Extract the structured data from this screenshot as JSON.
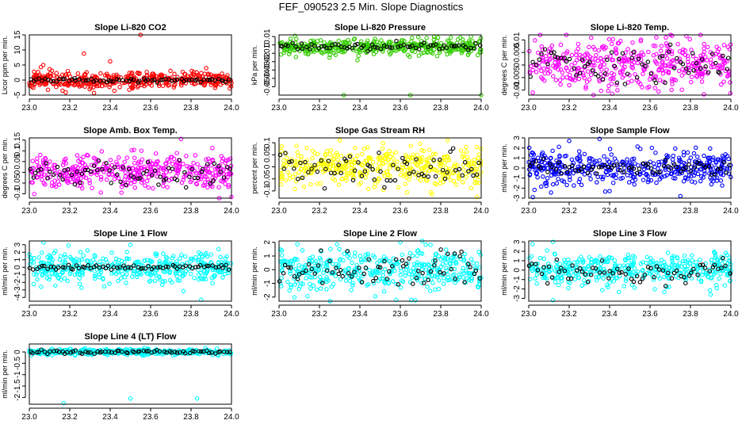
{
  "figure": {
    "title": "FEF_090523  2.5 Min. Slope Diagnostics"
  },
  "chart_data": [
    {
      "type": "scatter",
      "id": "co2",
      "title": "Slope Li-820 CO2",
      "ylabel": "Licor ppm per min.",
      "xlabel": "",
      "xlim": [
        23.0,
        24.0
      ],
      "ylim": [
        -5,
        15
      ],
      "yticks": [
        -5,
        0,
        5,
        10,
        15
      ],
      "xticks": [
        23.0,
        23.2,
        23.4,
        23.6,
        23.8,
        24.0
      ],
      "color": "#ff0000",
      "mean": 0,
      "spread": 1.4,
      "black_spread": 0.35,
      "seed": 11,
      "outliers": [
        [
          23.55,
          15.8
        ],
        [
          23.27,
          8.8
        ],
        [
          23.1,
          3.6
        ],
        [
          23.4,
          6.2
        ],
        [
          23.18,
          -4.1
        ],
        [
          23.32,
          -4.3
        ]
      ]
    },
    {
      "type": "scatter",
      "id": "pressure",
      "title": "Slope Li-820 Pressure",
      "ylabel": "kPa per min.",
      "xlabel": "",
      "xlim": [
        23.0,
        24.0
      ],
      "ylim": [
        -0.06,
        0.012
      ],
      "yticks": [
        -0.05,
        -0.04,
        -0.03,
        -0.02,
        -0.01,
        0.0,
        0.01
      ],
      "xticks": [
        23.0,
        23.2,
        23.4,
        23.6,
        23.8,
        24.0
      ],
      "color": "#33cc00",
      "mean": -0.002,
      "spread": 0.0045,
      "black_spread": 0.002,
      "seed": 23,
      "outliers": [
        [
          23.32,
          -0.06
        ],
        [
          23.65,
          -0.06
        ],
        [
          24.0,
          -0.06
        ],
        [
          23.95,
          0.01
        ]
      ]
    },
    {
      "type": "scatter",
      "id": "temp",
      "title": "Slope Li-820 Temp.",
      "ylabel": "degrees C per min.",
      "xlabel": "",
      "xlim": [
        23.0,
        24.0
      ],
      "ylim": [
        -0.012,
        0.012
      ],
      "yticks": [
        -0.01,
        -0.005,
        0.0,
        0.005,
        0.01
      ],
      "xticks": [
        23.0,
        23.2,
        23.4,
        23.6,
        23.8,
        24.0
      ],
      "color": "#ff00ff",
      "mean": 0.0,
      "spread": 0.0048,
      "black_spread": 0.0035,
      "seed": 37,
      "outliers": [
        [
          23.78,
          0.0115
        ],
        [
          23.02,
          -0.011
        ]
      ]
    },
    {
      "type": "scatter",
      "id": "ambtemp",
      "title": "Slope Amb. Box Temp.",
      "ylabel": "degrees C per min.",
      "xlabel": "",
      "xlim": [
        23.0,
        24.0
      ],
      "ylim": [
        -0.12,
        0.16
      ],
      "yticks": [
        -0.1,
        -0.05,
        0.0,
        0.05,
        0.1,
        0.15
      ],
      "xticks": [
        23.0,
        23.2,
        23.4,
        23.6,
        23.8,
        24.0
      ],
      "color": "#ff00ff",
      "mean": 0.0,
      "spread": 0.04,
      "black_spread": 0.03,
      "seed": 41,
      "outliers": [
        [
          23.75,
          0.155
        ],
        [
          24.0,
          -0.115
        ]
      ]
    },
    {
      "type": "scatter",
      "id": "rh",
      "title": "Slope Gas Stream RH",
      "ylabel": "percent per min.",
      "xlabel": "",
      "xlim": [
        23.0,
        24.0
      ],
      "ylim": [
        -0.13,
        0.12
      ],
      "yticks": [
        -0.1,
        -0.05,
        0.0,
        0.05,
        0.1
      ],
      "xticks": [
        23.0,
        23.2,
        23.4,
        23.6,
        23.8,
        24.0
      ],
      "color": "#ffff00",
      "mean": 0.0,
      "spread": 0.04,
      "black_spread": 0.035,
      "seed": 53,
      "outliers": [
        [
          23.98,
          -0.125
        ],
        [
          23.3,
          0.11
        ]
      ]
    },
    {
      "type": "scatter",
      "id": "sampleflow",
      "title": "Slope Sample Flow",
      "ylabel": "ml/min per min.",
      "xlabel": "",
      "xlim": [
        23.0,
        24.0
      ],
      "ylim": [
        -3,
        3
      ],
      "yticks": [
        -3,
        -2,
        -1,
        0,
        1,
        2,
        3
      ],
      "xticks": [
        23.0,
        23.2,
        23.4,
        23.6,
        23.8,
        24.0
      ],
      "color": "#0000ff",
      "mean": 0.0,
      "spread": 0.75,
      "black_spread": 0.35,
      "seed": 67,
      "outliers": [
        [
          23.35,
          2.9
        ],
        [
          23.2,
          2.7
        ],
        [
          23.02,
          -2.9
        ],
        [
          23.75,
          -2.8
        ],
        [
          23.4,
          -2.3
        ]
      ]
    },
    {
      "type": "scatter",
      "id": "line1",
      "title": "Slope Line 1 Flow",
      "ylabel": "ml/min per min.",
      "xlabel": "",
      "xlim": [
        23.0,
        24.0
      ],
      "ylim": [
        -4.5,
        3.5
      ],
      "yticks": [
        -4,
        -3,
        -2,
        -1,
        0,
        1,
        2,
        3
      ],
      "xticks": [
        23.0,
        23.2,
        23.4,
        23.6,
        23.8,
        24.0
      ],
      "color": "#00ffff",
      "mean": 0.0,
      "spread": 1.0,
      "black_spread": 0.12,
      "seed": 71,
      "outliers": [
        [
          23.07,
          3.3
        ],
        [
          23.5,
          3.0
        ],
        [
          23.85,
          -4.3
        ]
      ]
    },
    {
      "type": "scatter",
      "id": "line2",
      "title": "Slope Line 2 Flow",
      "ylabel": "ml/min per min.",
      "xlabel": "",
      "xlim": [
        23.0,
        24.0
      ],
      "ylim": [
        -2.3,
        2.1
      ],
      "yticks": [
        -2,
        -1,
        0,
        1,
        2
      ],
      "xticks": [
        23.0,
        23.2,
        23.4,
        23.6,
        23.8,
        24.0
      ],
      "color": "#00ffff",
      "mean": 0.0,
      "spread": 0.75,
      "black_spread": 0.7,
      "seed": 83,
      "outliers": [
        [
          23.58,
          -2.2
        ],
        [
          23.6,
          2.0
        ]
      ]
    },
    {
      "type": "scatter",
      "id": "line3",
      "title": "Slope Line 3 Flow",
      "ylabel": "ml/min per min.",
      "xlabel": "",
      "xlim": [
        23.0,
        24.0
      ],
      "ylim": [
        -3.3,
        3.1
      ],
      "yticks": [
        -3,
        -2,
        -1,
        0,
        1,
        2,
        3
      ],
      "xticks": [
        23.0,
        23.2,
        23.4,
        23.6,
        23.8,
        24.0
      ],
      "color": "#00ffff",
      "mean": 0.0,
      "spread": 0.9,
      "black_spread": 0.7,
      "seed": 97,
      "outliers": [
        [
          23.12,
          -3.2
        ],
        [
          23.12,
          3.0
        ],
        [
          23.9,
          -2.6
        ]
      ]
    },
    {
      "type": "scatter",
      "id": "line4",
      "title": "Slope Line 4 (LT) Flow",
      "ylabel": "ml/min per min.",
      "xlabel": "",
      "xlim": [
        23.0,
        24.0
      ],
      "ylim": [
        -2.3,
        0.35
      ],
      "yticks": [
        -2.0,
        -1.5,
        -1.0,
        -0.5,
        0.0
      ],
      "xticks": [
        23.0,
        23.2,
        23.4,
        23.6,
        23.8,
        24.0
      ],
      "color": "#00ffff",
      "mean": 0.0,
      "spread": 0.06,
      "black_spread": 0.04,
      "seed": 101,
      "outliers": [
        [
          23.17,
          -2.25
        ],
        [
          23.5,
          -2.05
        ],
        [
          23.83,
          -2.05
        ]
      ]
    }
  ]
}
